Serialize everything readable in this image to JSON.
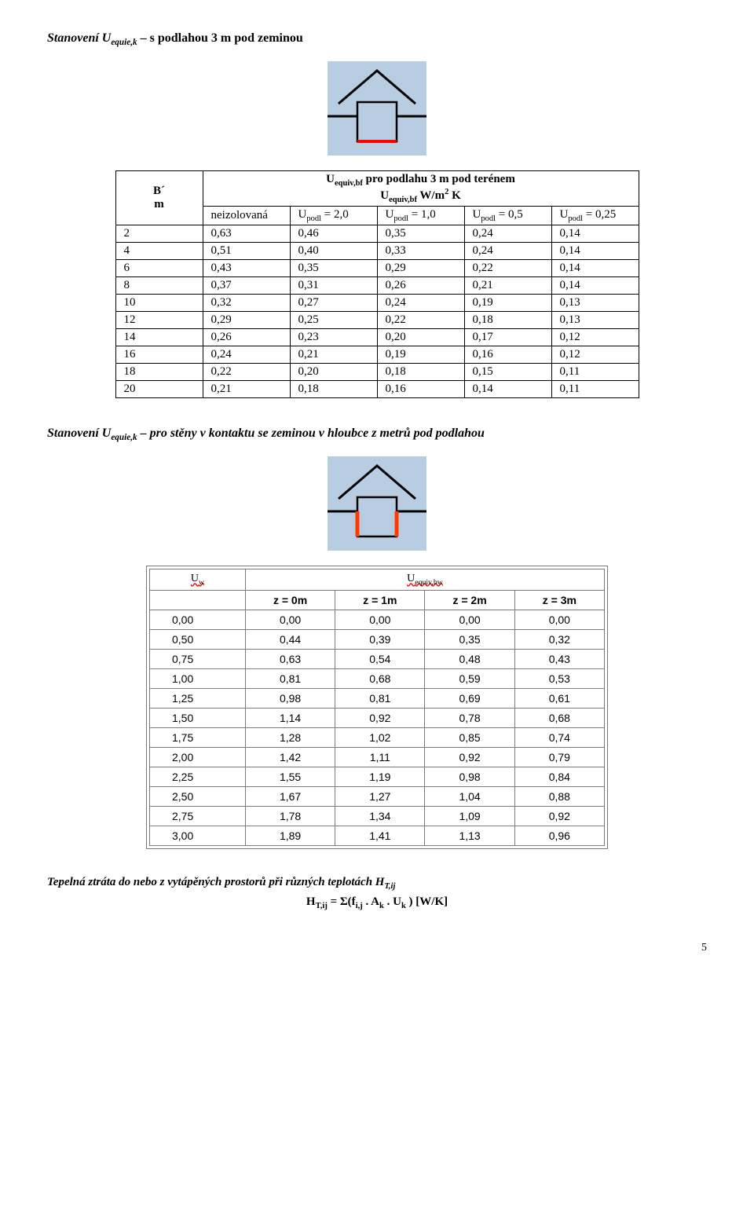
{
  "section1": {
    "heading_prefix": "Stanovení U",
    "heading_sub": "equie,k",
    "heading_rest": " – s podlahou 3 m pod zeminou",
    "diagram": {
      "bg": "#b8cde2",
      "ground": "#000",
      "box_stroke": "#000",
      "bottom": "#ff0000",
      "size": 120
    },
    "table_caption_sub": "equiv,bf",
    "table_caption": "  pro podlahu 3 m pod terénem",
    "subcaption1": "U",
    "subcaption1_sub": "equiv,bf",
    "subcaption2": " W/m",
    "subcaption2_sup": "2",
    "subcaption3": " K",
    "b_prime": "B´",
    "m_unit": "m",
    "columns": [
      {
        "label": "neizolovaná"
      },
      {
        "pre": "U",
        "sub": "podl",
        "rest": "  = 2,0"
      },
      {
        "pre": "U",
        "sub": "podl",
        "rest": " = 1,0"
      },
      {
        "pre": "U",
        "sub": "podl",
        "rest": "  = 0,5"
      },
      {
        "pre": "U",
        "sub": "podl",
        "rest": "  = 0,25"
      }
    ],
    "rows": [
      [
        "2",
        "0,63",
        "0,46",
        "0,35",
        "0,24",
        "0,14"
      ],
      [
        "4",
        "0,51",
        "0,40",
        "0,33",
        "0,24",
        "0,14"
      ],
      [
        "6",
        "0,43",
        "0,35",
        "0,29",
        "0,22",
        "0,14"
      ],
      [
        "8",
        "0,37",
        "0,31",
        "0,26",
        "0,21",
        "0,14"
      ],
      [
        "10",
        "0,32",
        "0,27",
        "0,24",
        "0,19",
        "0,13"
      ],
      [
        "12",
        "0,29",
        "0,25",
        "0,22",
        "0,18",
        "0,13"
      ],
      [
        "14",
        "0,26",
        "0,23",
        "0,20",
        "0,17",
        "0,12"
      ],
      [
        "16",
        "0,24",
        "0,21",
        "0,19",
        "0,16",
        "0,12"
      ],
      [
        "18",
        "0,22",
        "0,20",
        "0,18",
        "0,15",
        "0,11"
      ],
      [
        "20",
        "0,21",
        "0,18",
        "0,16",
        "0,14",
        "0,11"
      ]
    ]
  },
  "section2": {
    "heading_prefix": "Stanovení U",
    "heading_sub": "equie,k",
    "heading_rest": " – pro stěny v kontaktu se zeminou v hloubce  z metrů pod podlahou",
    "diagram": {
      "bg": "#b8cde2",
      "ground": "#000",
      "box_stroke": "#000",
      "side": "#ff3a00",
      "size": 120
    },
    "hdr_left": "U",
    "hdr_left_sub": "w",
    "hdr_right": "U",
    "hdr_right_sub": "equiv,bw",
    "z_labels": [
      "z = 0m",
      "z = 1m",
      "z = 2m",
      "z = 3m"
    ],
    "rows": [
      [
        "0,00",
        "0,00",
        "0,00",
        "0,00",
        "0,00"
      ],
      [
        "0,50",
        "0,44",
        "0,39",
        "0,35",
        "0,32"
      ],
      [
        "0,75",
        "0,63",
        "0,54",
        "0,48",
        "0,43"
      ],
      [
        "1,00",
        "0,81",
        "0,68",
        "0,59",
        "0,53"
      ],
      [
        "1,25",
        "0,98",
        "0,81",
        "0,69",
        "0,61"
      ],
      [
        "1,50",
        "1,14",
        "0,92",
        "0,78",
        "0,68"
      ],
      [
        "1,75",
        "1,28",
        "1,02",
        "0,85",
        "0,74"
      ],
      [
        "2,00",
        "1,42",
        "1,11",
        "0,92",
        "0,79"
      ],
      [
        "2,25",
        "1,55",
        "1,19",
        "0,98",
        "0,84"
      ],
      [
        "2,50",
        "1,67",
        "1,27",
        "1,04",
        "0,88"
      ],
      [
        "2,75",
        "1,78",
        "1,34",
        "1,09",
        "0,92"
      ],
      [
        "3,00",
        "1,89",
        "1,41",
        "1,13",
        "0,96"
      ]
    ]
  },
  "section3": {
    "para_pre": "Tepelná ztráta do nebo z vytápěných prostorů při různých teplotách H",
    "para_sub": "T,ij",
    "eq_left": "H",
    "eq_left_sub": "T,ij",
    "eq_mid": " = Σ(f",
    "eq_mid_sub": "i,j",
    "eq_mid2": " . A",
    "eq_mid2_sub": "k",
    "eq_mid3": " . U",
    "eq_mid3_sub": "k",
    "eq_end": " )  [W/K]"
  },
  "page_number": "5"
}
